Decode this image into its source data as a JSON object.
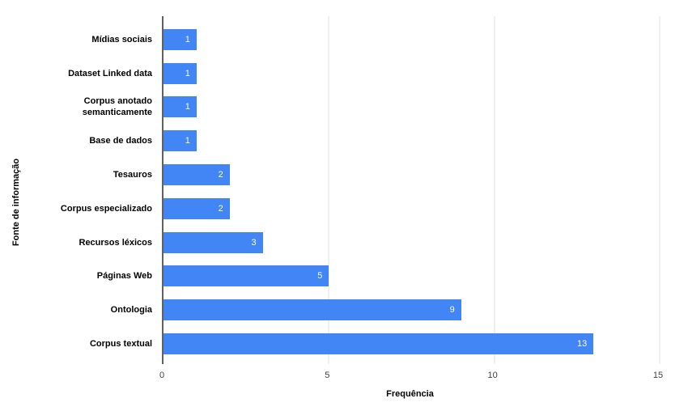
{
  "chart_data": {
    "type": "bar",
    "orientation": "horizontal",
    "title": "",
    "xlabel": "Frequência",
    "ylabel": "Fonte de informação",
    "categories": [
      "Mídias sociais",
      "Dataset Linked data",
      "Corpus anotado semanticamente",
      "Base de dados",
      "Tesauros",
      "Corpus especializado",
      "Recursos léxicos",
      "Páginas Web",
      "Ontologia",
      "Corpus textual"
    ],
    "values": [
      1,
      1,
      1,
      1,
      2,
      2,
      3,
      5,
      9,
      13
    ],
    "xlim": [
      0,
      15
    ],
    "x_ticks": [
      0,
      5,
      10,
      15
    ],
    "grid": "vertical-only",
    "legend": "none",
    "bar_color": "#4285f4",
    "value_label_color": "#ffffff",
    "gridline_color": "#e0e0e0",
    "axis_line_color": "#616161",
    "tick_label_color": "#424242",
    "background_color": "#ffffff"
  }
}
